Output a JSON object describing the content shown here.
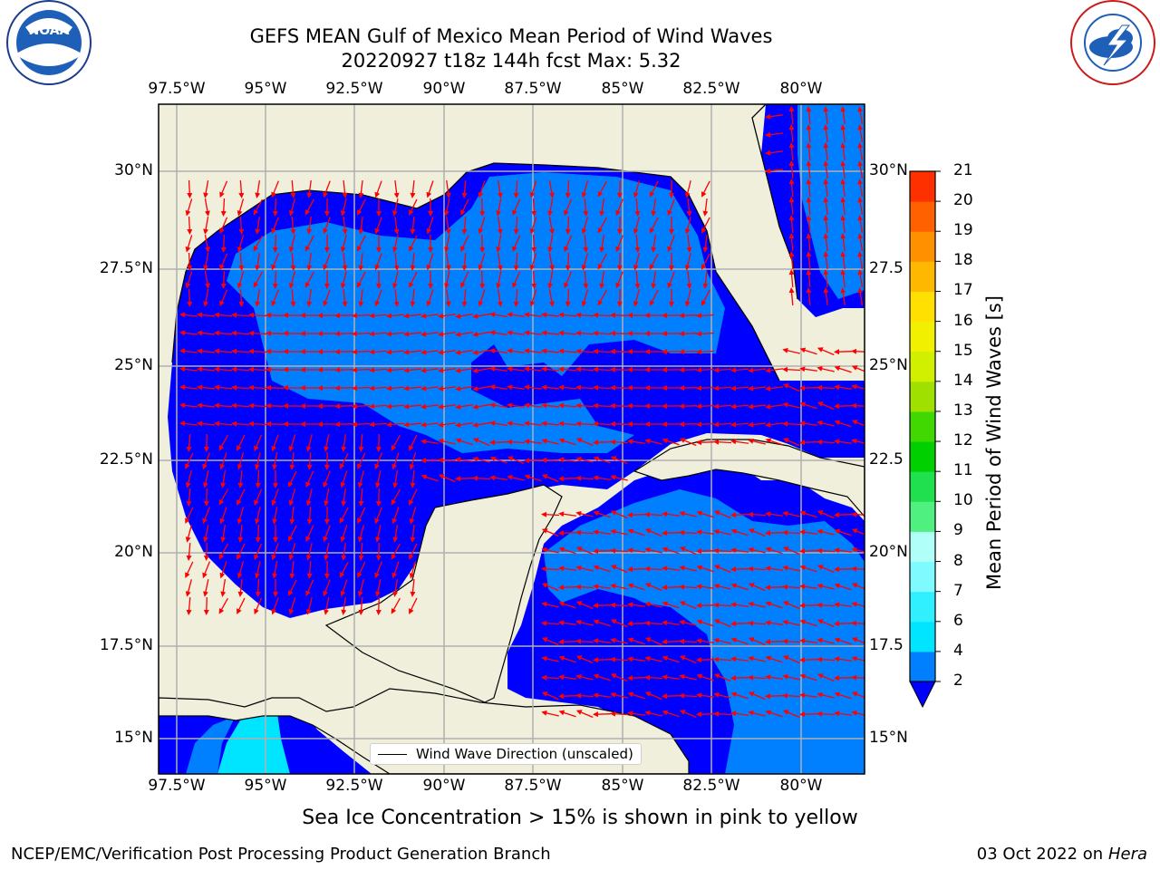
{
  "title": {
    "line1": "GEFS MEAN Gulf of Mexico Mean Period of Wind Waves",
    "line2": "20220927 t18z 144h fcst   Max: 5.32"
  },
  "logos": {
    "left": "NOAA",
    "left_ring": "NATIONAL OCEANIC AND ATMOSPHERIC ADMINISTRATION · U.S. DEPARTMENT OF COMMERCE",
    "right_ring": "NATIONAL WEATHER SERVICE"
  },
  "axes": {
    "lon_ticks": [
      "97.5°W",
      "95°W",
      "92.5°W",
      "90°W",
      "87.5°W",
      "85°W",
      "82.5°W",
      "80°W"
    ],
    "lon_values": [
      -97.5,
      -95,
      -92.5,
      -90,
      -87.5,
      -85,
      -82.5,
      -80
    ],
    "lat_ticks_left": [
      "30°N",
      "27.5°N",
      "25°N",
      "22.5°N",
      "20°N",
      "17.5°N",
      "15°N"
    ],
    "lat_ticks_right": [
      "30°N",
      "27.5",
      "25°N",
      "22.5",
      "20°N",
      "17.5",
      "15°N"
    ],
    "lat_values": [
      30,
      27.5,
      25,
      22.5,
      20,
      17.5,
      15
    ],
    "lon_range": [
      -98,
      -78.2
    ],
    "lat_range": [
      14,
      31.7
    ],
    "grid": true
  },
  "colorbar": {
    "label": "Mean Period of Wind Waves [s]",
    "ticks": [
      "2",
      "4",
      "6",
      "7",
      "8",
      "9",
      "10",
      "11",
      "12",
      "13",
      "14",
      "15",
      "16",
      "17",
      "18",
      "19",
      "20",
      "21"
    ],
    "colors": [
      "#0080ff",
      "#00e5ff",
      "#30f0ff",
      "#7ffbff",
      "#b0fff8",
      "#50f080",
      "#20e050",
      "#00d000",
      "#40d800",
      "#a0e000",
      "#d0f000",
      "#f0f000",
      "#ffe000",
      "#ffb800",
      "#ff9000",
      "#ff6000",
      "#ff3000",
      "#ff0000"
    ],
    "extend_color": "#0000ff"
  },
  "colors": {
    "land": "#efefdc",
    "ocean_low": "#0000ff",
    "ocean_mid": "#0080ff",
    "arrow": "#ff0000",
    "grid": "#b0b0b0"
  },
  "legend": {
    "label": "Wind Wave Direction (unscaled)"
  },
  "note": "Sea Ice Concentration > 15% is shown in pink to yellow",
  "footer": {
    "left": "NCEP/EMC/Verification Post Processing Product Generation Branch",
    "right_date": "03 Oct 2022 on",
    "right_machine": "Hera"
  }
}
